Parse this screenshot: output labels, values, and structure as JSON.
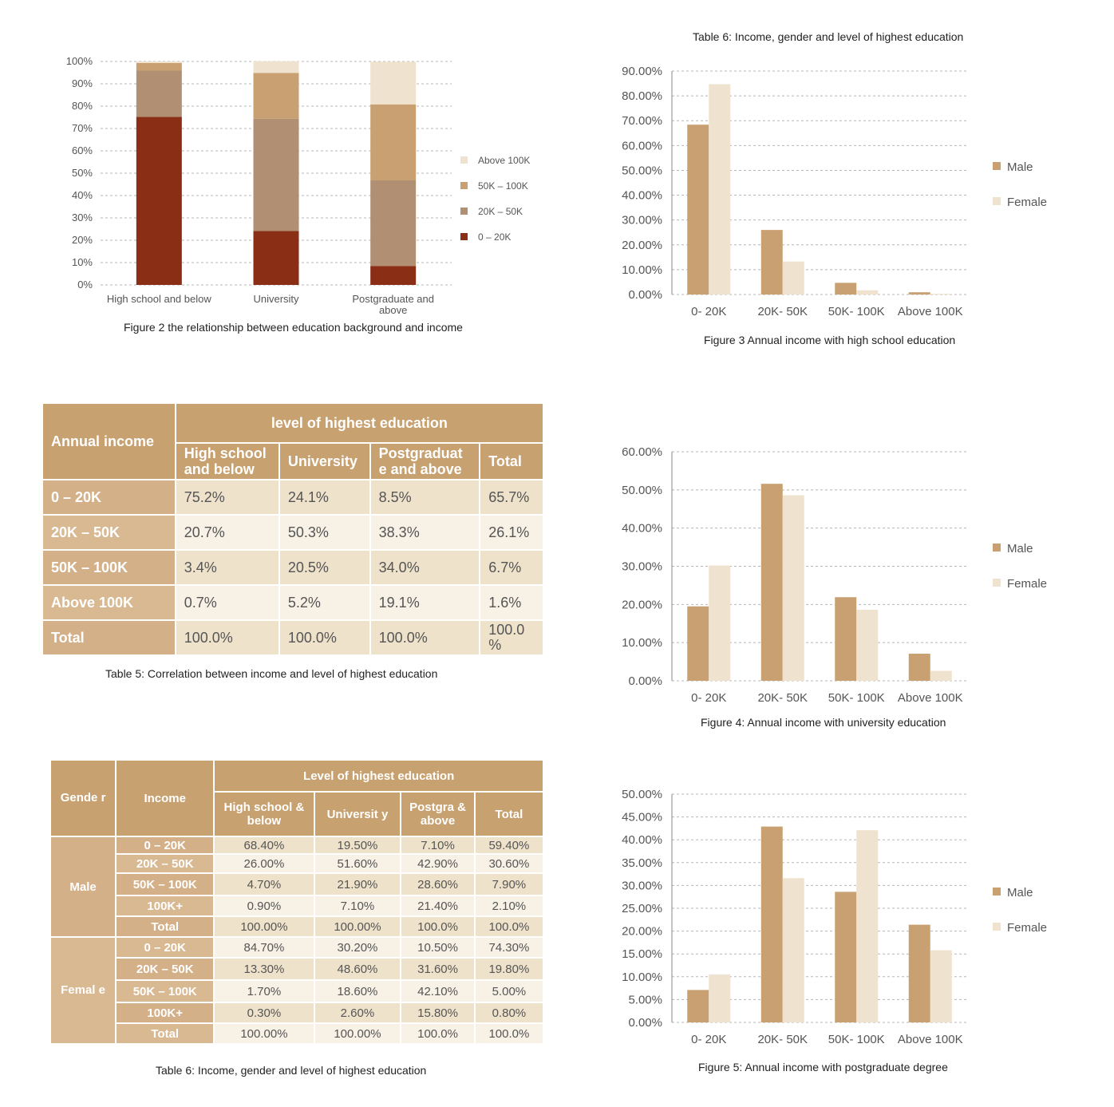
{
  "captions": {
    "fig2": "Figure 2 the relationship between education background and income",
    "fig3_top": "Table 6: Income, gender and level of highest education",
    "fig3": "Figure 3 Annual income with high school education",
    "fig4": "Figure 4: Annual income with university education",
    "fig5": "Figure 5: Annual income with postgraduate degree",
    "table5": "Table 5: Correlation between income and level of highest education",
    "table6": "Table 6: Income, gender and level of highest education"
  },
  "colors": {
    "dark_red": "#8b2e16",
    "mid_brown": "#b08f72",
    "tan": "#c9a071",
    "cream": "#efe3cf",
    "male": "#c9a071",
    "female": "#efe3cf",
    "header": "#c8a170"
  },
  "table5": {
    "annual_income": "Annual income",
    "group_header": "level of highest education",
    "columns": [
      "High school and below",
      "University",
      "Postgraduat e and above",
      "Total"
    ],
    "rows": [
      {
        "label": "0 – 20K",
        "values": [
          "75.2%",
          "24.1%",
          "8.5%",
          "65.7%"
        ]
      },
      {
        "label": "20K – 50K",
        "values": [
          "20.7%",
          "50.3%",
          "38.3%",
          "26.1%"
        ]
      },
      {
        "label": "50K – 100K",
        "values": [
          "3.4%",
          "20.5%",
          "34.0%",
          "6.7%"
        ]
      },
      {
        "label": "Above 100K",
        "values": [
          "0.7%",
          "5.2%",
          "19.1%",
          "1.6%"
        ]
      },
      {
        "label": "Total",
        "values": [
          "100.0%",
          "100.0%",
          "100.0%",
          "100.0 %"
        ]
      }
    ]
  },
  "table6": {
    "gender_header": "Gende r",
    "income_header": "Income",
    "group_header": "Level of highest education",
    "columns": [
      "High school & below",
      "Universit y",
      "Postgra & above",
      "Total"
    ],
    "male_label": "Male",
    "female_label": "Femal e",
    "male_rows": [
      {
        "label": "0 – 20K",
        "values": [
          "68.40%",
          "19.50%",
          "7.10%",
          "59.40%"
        ]
      },
      {
        "label": "20K – 50K",
        "values": [
          "26.00%",
          "51.60%",
          "42.90%",
          "30.60%"
        ]
      },
      {
        "label": "50K – 100K",
        "values": [
          "4.70%",
          "21.90%",
          "28.60%",
          "7.90%"
        ]
      },
      {
        "label": "100K+",
        "values": [
          "0.90%",
          "7.10%",
          "21.40%",
          "2.10%"
        ]
      },
      {
        "label": "Total",
        "values": [
          "100.00%",
          "100.00%",
          "100.0%",
          "100.0%"
        ]
      }
    ],
    "female_rows": [
      {
        "label": "0 – 20K",
        "values": [
          "84.70%",
          "30.20%",
          "10.50%",
          "74.30%"
        ]
      },
      {
        "label": "20K – 50K",
        "values": [
          "13.30%",
          "48.60%",
          "31.60%",
          "19.80%"
        ]
      },
      {
        "label": "50K – 100K",
        "values": [
          "1.70%",
          "18.60%",
          "42.10%",
          "5.00%"
        ]
      },
      {
        "label": "100K+",
        "values": [
          "0.30%",
          "2.60%",
          "15.80%",
          "0.80%"
        ]
      },
      {
        "label": "Total",
        "values": [
          "100.00%",
          "100.00%",
          "100.0%",
          "100.0%"
        ]
      }
    ]
  },
  "chart_data": [
    {
      "id": "fig2",
      "type": "bar",
      "stacked": true,
      "title": "",
      "categories": [
        "High school and below",
        "University",
        "Postgraduate and above"
      ],
      "series": [
        {
          "name": "0 – 20K",
          "values": [
            75.2,
            24.1,
            8.5
          ]
        },
        {
          "name": "20K – 50K",
          "values": [
            20.7,
            50.3,
            38.3
          ]
        },
        {
          "name": "50K – 100K",
          "values": [
            3.4,
            20.5,
            34.0
          ]
        },
        {
          "name": "Above 100K",
          "values": [
            0.7,
            5.2,
            19.1
          ]
        }
      ],
      "ylim": [
        0,
        100
      ],
      "yticks": [
        "0%",
        "10%",
        "20%",
        "30%",
        "40%",
        "50%",
        "60%",
        "70%",
        "80%",
        "90%",
        "100%"
      ],
      "legend_position": "right",
      "grid": true
    },
    {
      "id": "fig3",
      "type": "bar",
      "title": "",
      "categories": [
        "0- 20K",
        "20K- 50K",
        "50K- 100K",
        "Above 100K"
      ],
      "series": [
        {
          "name": "Male",
          "values": [
            68.4,
            26.0,
            4.7,
            0.9
          ]
        },
        {
          "name": "Female",
          "values": [
            84.7,
            13.3,
            1.7,
            0.3
          ]
        }
      ],
      "ylim": [
        0,
        90
      ],
      "yticks": [
        "0.00%",
        "10.00%",
        "20.00%",
        "30.00%",
        "40.00%",
        "50.00%",
        "60.00%",
        "70.00%",
        "80.00%",
        "90.00%"
      ],
      "legend_position": "right",
      "grid": true
    },
    {
      "id": "fig4",
      "type": "bar",
      "title": "",
      "categories": [
        "0- 20K",
        "20K- 50K",
        "50K- 100K",
        "Above 100K"
      ],
      "series": [
        {
          "name": "Male",
          "values": [
            19.5,
            51.6,
            21.9,
            7.1
          ]
        },
        {
          "name": "Female",
          "values": [
            30.2,
            48.6,
            18.6,
            2.6
          ]
        }
      ],
      "ylim": [
        0,
        60
      ],
      "yticks": [
        "0.00%",
        "10.00%",
        "20.00%",
        "30.00%",
        "40.00%",
        "50.00%",
        "60.00%"
      ],
      "legend_position": "right",
      "grid": true
    },
    {
      "id": "fig5",
      "type": "bar",
      "title": "",
      "categories": [
        "0- 20K",
        "20K- 50K",
        "50K- 100K",
        "Above 100K"
      ],
      "series": [
        {
          "name": "Male",
          "values": [
            7.1,
            42.9,
            28.6,
            21.4
          ]
        },
        {
          "name": "Female",
          "values": [
            10.5,
            31.6,
            42.1,
            15.8
          ]
        }
      ],
      "ylim": [
        0,
        50
      ],
      "yticks": [
        "0.00%",
        "5.00%",
        "10.00%",
        "15.00%",
        "20.00%",
        "25.00%",
        "30.00%",
        "35.00%",
        "40.00%",
        "45.00%",
        "50.00%"
      ],
      "legend_position": "right",
      "grid": true
    }
  ]
}
